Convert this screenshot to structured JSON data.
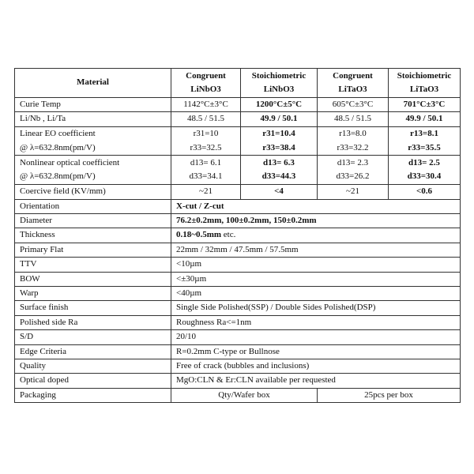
{
  "header": {
    "material": "Material",
    "columns": [
      {
        "line1": "Congruent",
        "line2": "LiNbO3"
      },
      {
        "line1": "Stoichiometric",
        "line2": "LiNbO3"
      },
      {
        "line1": "Congruent",
        "line2": "LiTaO3"
      },
      {
        "line1": "Stoichiometric",
        "line2": "LiTaO3"
      }
    ]
  },
  "material_rows": [
    {
      "label": "Curie Temp",
      "values": [
        "1142°C±3°C",
        "1200°C±5°C",
        "605°C±3°C",
        "701°C±3°C"
      ]
    },
    {
      "label": "Li/Nb , Li/Ta",
      "values": [
        "48.5 / 51.5",
        "49.9 / 50.1",
        "48.5 / 51.5",
        "49.9 / 50.1"
      ]
    },
    {
      "label": "Linear EO coefficient",
      "label2": "@ λ=632.8nm(pm/V)",
      "values": [
        "r31=10",
        "r31=10.4",
        "r13=8.0",
        "r13=8.1"
      ],
      "values2": [
        "r33=32.5",
        "r33=38.4",
        "r33=32.2",
        "r33=35.5"
      ]
    },
    {
      "label": "Nonlinear optical coefficient",
      "label2": "@ λ=632.8nm(pm/V)",
      "values": [
        "d13= 6.1",
        "d13= 6.3",
        "d13= 2.3",
        "d13= 2.5"
      ],
      "values2": [
        "d33=34.1",
        "d33=44.3",
        "d33=26.2",
        "d33=30.4"
      ]
    },
    {
      "label": "Coercive field (KV/mm)",
      "values": [
        "~21",
        "<4",
        "~21",
        "<0.6"
      ]
    }
  ],
  "spec_rows": [
    {
      "label": "Orientation",
      "value": "X-cut / Z-cut"
    },
    {
      "label": "Diameter",
      "value": "76.2±0.2mm, 100±0.2mm, 150±0.2mm"
    },
    {
      "label": "Thickness",
      "value": "0.18~0.5mm",
      "suffix": " etc."
    },
    {
      "label": "Primary Flat",
      "value": "22mm / 32mm / 47.5mm / 57.5mm"
    },
    {
      "label": "TTV",
      "value": "<10µm"
    },
    {
      "label": "BOW",
      "value": "<±30µm"
    },
    {
      "label": "Warp",
      "value": "<40µm"
    },
    {
      "label": "Surface finish",
      "value": "Single Side Polished(SSP) / Double Sides Polished(DSP)"
    },
    {
      "label": "Polished side Ra",
      "value": "Roughness Ra<=1nm"
    },
    {
      "label": "S/D",
      "value": "20/10"
    },
    {
      "label": "Edge Criteria",
      "value": "R=0.2mm C-type or Bullnose"
    },
    {
      "label": "Quality",
      "value": "Free of crack (bubbles and inclusions)"
    },
    {
      "label": "Optical doped",
      "value": "MgO:CLN & Er:CLN available per requested"
    }
  ],
  "packaging": {
    "label": "Packaging",
    "left": "Qty/Wafer box",
    "right": "25pcs per box"
  }
}
